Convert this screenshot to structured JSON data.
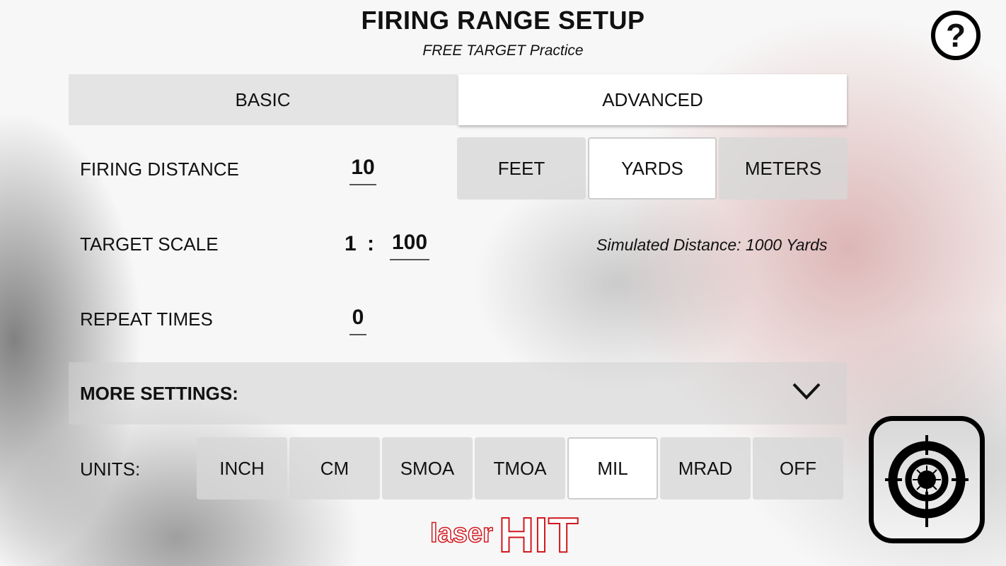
{
  "header": {
    "title": "FIRING RANGE SETUP",
    "subtitle": "FREE TARGET Practice",
    "help_icon": "help-circle-icon",
    "help_label": "?"
  },
  "tabs": [
    {
      "label": "BASIC",
      "selected": false
    },
    {
      "label": "ADVANCED",
      "selected": true
    }
  ],
  "firing_distance": {
    "label": "FIRING DISTANCE",
    "value": "10",
    "units": [
      {
        "label": "FEET",
        "selected": false
      },
      {
        "label": "YARDS",
        "selected": true
      },
      {
        "label": "METERS",
        "selected": false
      }
    ]
  },
  "target_scale": {
    "label": "TARGET SCALE",
    "left": "1",
    "sep": ":",
    "value": "100",
    "simulated": "Simulated Distance: 1000 Yards"
  },
  "repeat": {
    "label": "REPEAT TIMES",
    "value": "0"
  },
  "more_settings": {
    "label": "MORE SETTINGS:",
    "icon": "chevron-down-icon"
  },
  "units": {
    "label": "UNITS:",
    "options": [
      {
        "label": "INCH",
        "selected": false
      },
      {
        "label": "CM",
        "selected": false
      },
      {
        "label": "SMOA",
        "selected": false
      },
      {
        "label": "TMOA",
        "selected": false
      },
      {
        "label": "MIL",
        "selected": true
      },
      {
        "label": "MRAD",
        "selected": false
      },
      {
        "label": "OFF",
        "selected": false
      }
    ]
  },
  "logo": {
    "text_small": "laser",
    "text_big": "HIT",
    "color": "#d0181e"
  },
  "start_button": {
    "icon": "crosshair-target-icon"
  }
}
